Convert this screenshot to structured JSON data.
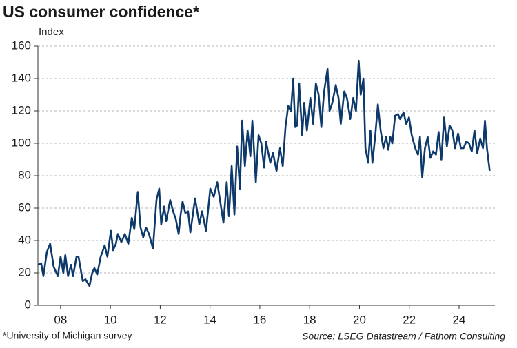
{
  "chart_data": {
    "type": "line",
    "title": "US consumer confidence*",
    "subtitle": "Index",
    "footnote": "*University of Michigan survey",
    "source": "Source: LSEG Datastream / Fathom Consulting",
    "color": "#0d3a6b",
    "grid": true,
    "xlim": [
      2007.09,
      2025.44
    ],
    "ylim": [
      0,
      160
    ],
    "yticks": [
      0,
      20,
      40,
      60,
      80,
      100,
      120,
      140,
      160
    ],
    "xticks": [
      {
        "value": 2008,
        "label": "08"
      },
      {
        "value": 2010,
        "label": "10"
      },
      {
        "value": 2012,
        "label": "12"
      },
      {
        "value": 2014,
        "label": "14"
      },
      {
        "value": 2016,
        "label": "16"
      },
      {
        "value": 2018,
        "label": "18"
      },
      {
        "value": 2020,
        "label": "20"
      },
      {
        "value": 2022,
        "label": "22"
      },
      {
        "value": 2024,
        "label": "24"
      }
    ],
    "x": [
      2007.09,
      2007.22,
      2007.31,
      2007.45,
      2007.58,
      2007.72,
      2007.89,
      2008.0,
      2008.11,
      2008.19,
      2008.3,
      2008.42,
      2008.5,
      2008.64,
      2008.72,
      2008.89,
      2009.0,
      2009.16,
      2009.27,
      2009.36,
      2009.47,
      2009.61,
      2009.77,
      2009.88,
      2010.02,
      2010.11,
      2010.22,
      2010.3,
      2010.44,
      2010.58,
      2010.72,
      2010.86,
      2010.96,
      2011.1,
      2011.21,
      2011.32,
      2011.43,
      2011.55,
      2011.71,
      2011.85,
      2011.96,
      2012.04,
      2012.16,
      2012.24,
      2012.4,
      2012.52,
      2012.63,
      2012.74,
      2012.82,
      2012.9,
      2013.01,
      2013.12,
      2013.21,
      2013.32,
      2013.4,
      2013.57,
      2013.68,
      2013.84,
      2014.01,
      2014.15,
      2014.29,
      2014.4,
      2014.54,
      2014.67,
      2014.76,
      2014.87,
      2014.98,
      2015.09,
      2015.2,
      2015.29,
      2015.4,
      2015.51,
      2015.62,
      2015.7,
      2015.84,
      2015.95,
      2016.06,
      2016.17,
      2016.25,
      2016.42,
      2016.53,
      2016.67,
      2016.81,
      2016.92,
      2017.03,
      2017.14,
      2017.25,
      2017.34,
      2017.42,
      2017.5,
      2017.58,
      2017.7,
      2017.78,
      2017.89,
      2018.03,
      2018.14,
      2018.25,
      2018.36,
      2018.47,
      2018.58,
      2018.72,
      2018.8,
      2018.91,
      2019.05,
      2019.16,
      2019.25,
      2019.39,
      2019.5,
      2019.63,
      2019.75,
      2019.86,
      2019.97,
      2020.05,
      2020.16,
      2020.24,
      2020.35,
      2020.44,
      2020.52,
      2020.63,
      2020.74,
      2020.85,
      2020.96,
      2021.07,
      2021.16,
      2021.24,
      2021.32,
      2021.43,
      2021.55,
      2021.63,
      2021.77,
      2021.88,
      2021.99,
      2022.1,
      2022.24,
      2022.35,
      2022.43,
      2022.52,
      2022.63,
      2022.74,
      2022.85,
      2022.96,
      2023.07,
      2023.18,
      2023.29,
      2023.4,
      2023.51,
      2023.62,
      2023.73,
      2023.84,
      2023.96,
      2024.07,
      2024.18,
      2024.29,
      2024.4,
      2024.51,
      2024.62,
      2024.73,
      2024.85,
      2024.96,
      2025.04,
      2025.12,
      2025.23
    ],
    "values": [
      25,
      26,
      18,
      33,
      38,
      24,
      18,
      30,
      20,
      31,
      18,
      25,
      18,
      30,
      30,
      15,
      16,
      12,
      20,
      23,
      19,
      30,
      37,
      30,
      46,
      34,
      38,
      44,
      39,
      44,
      38,
      54,
      47,
      70,
      48,
      42,
      48,
      44,
      35,
      65,
      72,
      50,
      61,
      52,
      65,
      58,
      53,
      44,
      56,
      64,
      57,
      58,
      45,
      57,
      66,
      50,
      58,
      46,
      72,
      67,
      76,
      65,
      51,
      76,
      55,
      86,
      56,
      98,
      72,
      114,
      86,
      108,
      92,
      114,
      76,
      105,
      100,
      85,
      101,
      88,
      94,
      83,
      97,
      86,
      110,
      123,
      120,
      140,
      110,
      111,
      137,
      105,
      125,
      108,
      128,
      112,
      137,
      130,
      110,
      132,
      146,
      120,
      125,
      136,
      128,
      112,
      132,
      128,
      115,
      128,
      120,
      151,
      130,
      140,
      97,
      88,
      108,
      88,
      104,
      124,
      108,
      97,
      104,
      96,
      104,
      100,
      117,
      118,
      115,
      119,
      112,
      116,
      105,
      97,
      93,
      104,
      79,
      97,
      104,
      91,
      95,
      93,
      107,
      90,
      116,
      98,
      111,
      108,
      97,
      106,
      97,
      97,
      101,
      100,
      95,
      108,
      94,
      103,
      97,
      114,
      97,
      83
    ]
  }
}
